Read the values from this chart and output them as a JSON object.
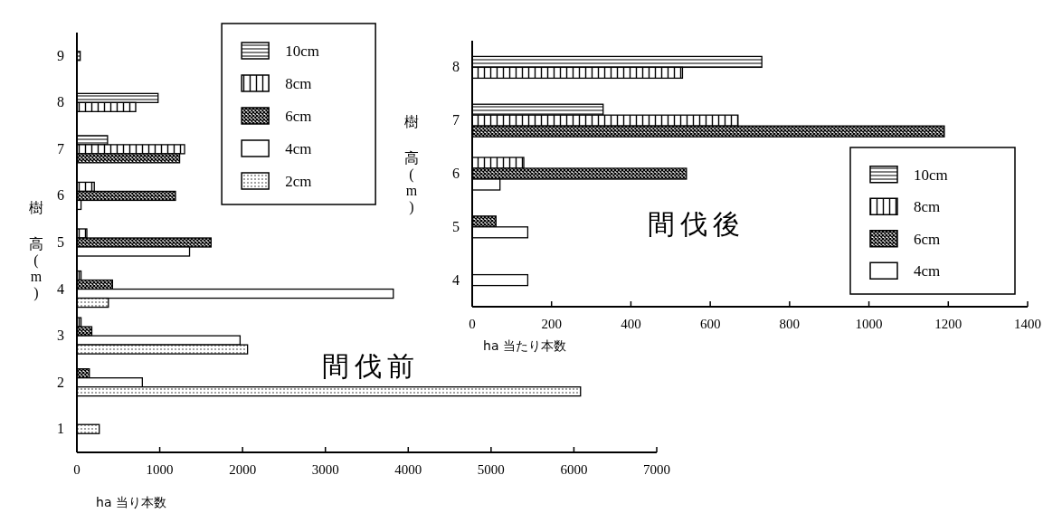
{
  "chart_data": [
    {
      "type": "bar",
      "orientation": "horizontal",
      "title": "間伐前",
      "xlabel": "ha 当り本数",
      "ylabel": "樹高(m)",
      "categories": [
        "9",
        "8",
        "7",
        "6",
        "5",
        "4",
        "3",
        "2",
        "1"
      ],
      "series": [
        {
          "name": "10cm",
          "color": "#000000",
          "values": [
            40,
            980,
            370,
            null,
            null,
            null,
            null,
            null,
            null
          ]
        },
        {
          "name": "8cm",
          "color": "#000000",
          "values": [
            null,
            710,
            1300,
            210,
            120,
            50,
            50,
            null,
            null
          ]
        },
        {
          "name": "6cm",
          "color": "#000000",
          "values": [
            null,
            null,
            1240,
            1190,
            1620,
            430,
            180,
            150,
            null
          ]
        },
        {
          "name": "4cm",
          "color": "#000000",
          "values": [
            null,
            null,
            null,
            50,
            1360,
            3820,
            1970,
            790,
            null
          ]
        },
        {
          "name": "2cm",
          "color": "#000000",
          "values": [
            null,
            null,
            null,
            null,
            null,
            380,
            2060,
            6080,
            270
          ]
        }
      ],
      "xlim": [
        0,
        7000
      ],
      "xticks": [
        0,
        1000,
        2000,
        3000,
        4000,
        5000,
        6000,
        7000
      ],
      "grid": false,
      "legend": "top"
    },
    {
      "type": "bar",
      "orientation": "horizontal",
      "title": "間伐後",
      "xlabel": "ha 当たり本数",
      "ylabel": "樹高(m)",
      "categories": [
        "8",
        "7",
        "6",
        "5",
        "4"
      ],
      "series": [
        {
          "name": "10cm",
          "color": "#000000",
          "values": [
            730,
            330,
            null,
            null,
            null
          ]
        },
        {
          "name": "8cm",
          "color": "#000000",
          "values": [
            530,
            670,
            130,
            null,
            null
          ]
        },
        {
          "name": "6cm",
          "color": "#000000",
          "values": [
            null,
            1190,
            540,
            60,
            null
          ]
        },
        {
          "name": "4cm",
          "color": "#000000",
          "values": [
            null,
            null,
            70,
            140,
            140
          ]
        }
      ],
      "xlim": [
        0,
        1400
      ],
      "xticks": [
        0,
        200,
        400,
        600,
        800,
        1000,
        1200,
        1400
      ],
      "grid": false,
      "legend": "bottom right"
    }
  ]
}
